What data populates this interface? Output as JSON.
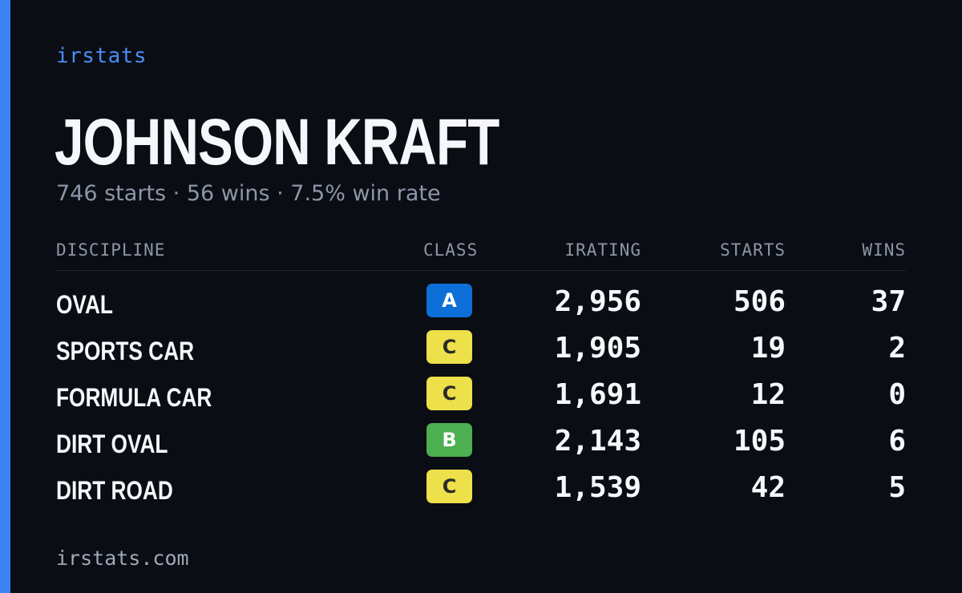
{
  "brand": "irstats",
  "driver": {
    "name": "JOHNSON KRAFT",
    "summary": "746 starts · 56 wins · 7.5% win rate"
  },
  "table": {
    "headers": {
      "discipline": "DISCIPLINE",
      "class": "CLASS",
      "irating": "IRATING",
      "starts": "STARTS",
      "wins": "WINS"
    },
    "rows": [
      {
        "discipline": "OVAL",
        "class": "A",
        "irating": "2,956",
        "starts": "506",
        "wins": "37"
      },
      {
        "discipline": "SPORTS CAR",
        "class": "C",
        "irating": "1,905",
        "starts": "19",
        "wins": "2"
      },
      {
        "discipline": "FORMULA CAR",
        "class": "C",
        "irating": "1,691",
        "starts": "12",
        "wins": "0"
      },
      {
        "discipline": "DIRT OVAL",
        "class": "B",
        "irating": "2,143",
        "starts": "105",
        "wins": "6"
      },
      {
        "discipline": "DIRT ROAD",
        "class": "C",
        "irating": "1,539",
        "starts": "42",
        "wins": "5"
      }
    ]
  },
  "class_colors": {
    "A": {
      "bg": "#0d6fd8",
      "fg": "#ffffff"
    },
    "B": {
      "bg": "#4caf50",
      "fg": "#ffffff"
    },
    "C": {
      "bg": "#ede04a",
      "fg": "#2a2a2a"
    }
  },
  "colors": {
    "accent": "#3b82f6",
    "background": "#0a0d14"
  },
  "footer": "irstats.com"
}
